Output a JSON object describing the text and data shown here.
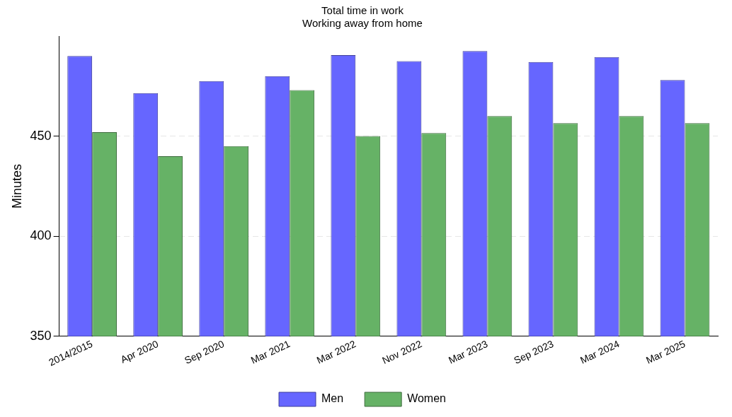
{
  "chart_data": {
    "type": "bar",
    "title": "Total time in work",
    "subtitle": "Working away from home",
    "ylabel": "Minutes",
    "categories": [
      "2014/2015",
      "Apr 2020",
      "Sep 2020",
      "Mar 2021",
      "Mar 2022",
      "Nov 2022",
      "Mar 2023",
      "Sep 2023",
      "Mar 2024",
      "Mar 2025"
    ],
    "series": [
      {
        "name": "Men",
        "color": "#6666ff",
        "values": [
          490,
          471.5,
          477.5,
          480,
          490.5,
          487.5,
          492.5,
          487,
          489.5,
          478
        ]
      },
      {
        "name": "Women",
        "color": "#66b266",
        "values": [
          452,
          440,
          445,
          473,
          450,
          451.5,
          460,
          456.5,
          460,
          456.5
        ]
      }
    ],
    "ylim": [
      350,
      500
    ],
    "yticks": [
      350,
      400,
      450
    ],
    "grid": "y",
    "legend": "bottom"
  }
}
